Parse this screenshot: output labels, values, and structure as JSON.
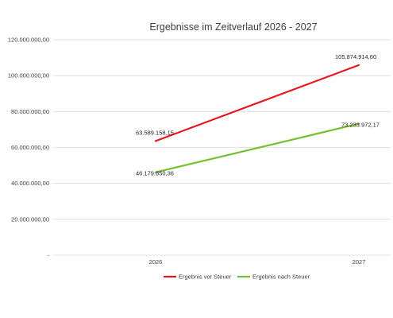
{
  "chart_data": {
    "type": "line",
    "title": "Ergebnisse im Zeitverlauf 2026 - 2027",
    "categories": [
      "2026",
      "2027"
    ],
    "ylim": [
      0,
      120000000
    ],
    "yticks": [
      0,
      20000000,
      40000000,
      60000000,
      80000000,
      100000000,
      120000000
    ],
    "ytick_labels": [
      "-",
      "20.000.000,00",
      "40.000.000,00",
      "60.000.000,00",
      "80.000.000,00",
      "100.000.000,00",
      "120.000.000,00"
    ],
    "grid": true,
    "legend_position": "bottom",
    "series": [
      {
        "name": "Ergebnis vor Steuer",
        "color": "#e8161b",
        "values": [
          63589158.15,
          105874914.6
        ],
        "labels": [
          "63.589.158,15",
          "105.874.914,60"
        ]
      },
      {
        "name": "Ergebnis nach Steuer",
        "color": "#77c02d",
        "values": [
          46179650.36,
          73233972.17
        ],
        "labels": [
          "46.179.650,36",
          "73.233.972,17"
        ]
      }
    ]
  }
}
